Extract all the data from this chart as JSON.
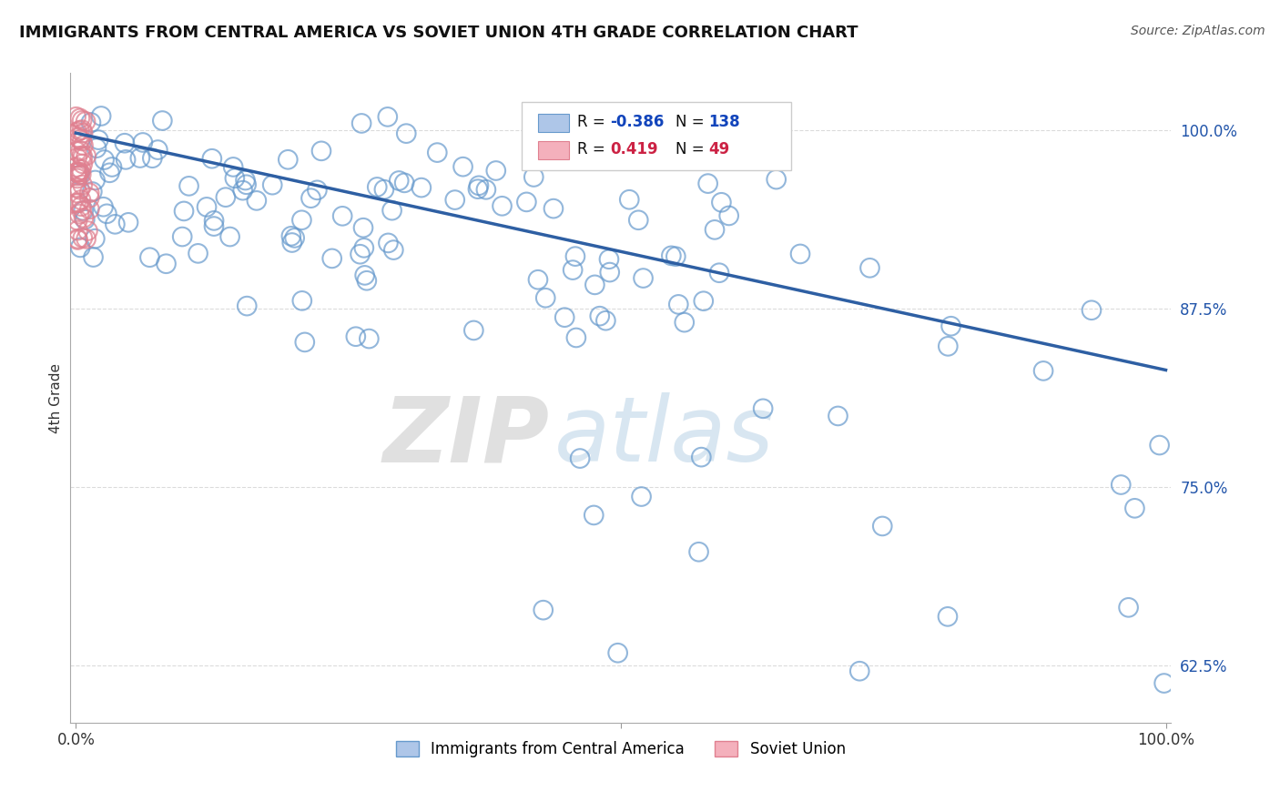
{
  "title": "IMMIGRANTS FROM CENTRAL AMERICA VS SOVIET UNION 4TH GRADE CORRELATION CHART",
  "source_text": "Source: ZipAtlas.com",
  "ylabel": "4th Grade",
  "watermark_zip": "ZIP",
  "watermark_atlas": "atlas",
  "xlim": [
    -0.005,
    1.005
  ],
  "ylim": [
    0.585,
    1.04
  ],
  "yticks": [
    0.625,
    0.75,
    0.875,
    1.0
  ],
  "ytick_labels": [
    "62.5%",
    "75.0%",
    "87.5%",
    "100.0%"
  ],
  "xtick_pos": [
    0.0,
    0.5,
    1.0
  ],
  "xtick_labels": [
    "0.0%",
    "",
    "100.0%"
  ],
  "blue_R": -0.386,
  "blue_N": 138,
  "pink_R": 0.419,
  "pink_N": 49,
  "trend_color": "#2e5fa3",
  "trend_y_start": 0.998,
  "trend_y_end": 0.832,
  "blue_scatter_color": "#aec6e8",
  "blue_edge_color": "#6699cc",
  "pink_scatter_color": "#f4b0bc",
  "pink_edge_color": "#e08090",
  "background_color": "#ffffff",
  "grid_color": "#cccccc",
  "legend_R1_color": "#1144bb",
  "legend_R2_color": "#cc2244",
  "ytick_color": "#2255aa",
  "source_color": "#555555"
}
